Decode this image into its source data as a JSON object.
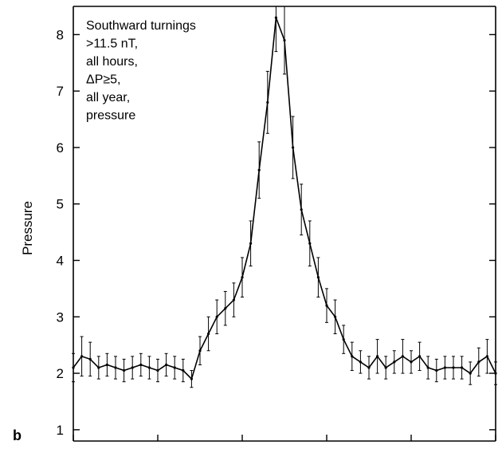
{
  "chart_data": {
    "type": "line",
    "title": "",
    "xlabel": "",
    "ylabel": "Pressure",
    "ylim": [
      0.8,
      8.5
    ],
    "xlim": [
      0,
      1
    ],
    "y_ticks": [
      1,
      2,
      3,
      4,
      5,
      6,
      7,
      8
    ],
    "x_tick_positions": [
      0,
      0.2,
      0.4,
      0.6,
      0.8,
      1.0
    ],
    "x_tick_labels_visible": false,
    "grid": false,
    "legend": "none",
    "panel_label": "b",
    "annotation": [
      "Southward turnings",
      ">11.5 nT,",
      "all hours,",
      "ΔP≥5,",
      "all year,",
      "pressure"
    ],
    "series": [
      {
        "error_bars": true,
        "x": [
          0.0,
          0.02,
          0.04,
          0.06,
          0.08,
          0.1,
          0.12,
          0.14,
          0.16,
          0.18,
          0.2,
          0.22,
          0.24,
          0.26,
          0.28,
          0.3,
          0.32,
          0.34,
          0.36,
          0.38,
          0.4,
          0.42,
          0.44,
          0.46,
          0.48,
          0.5,
          0.52,
          0.54,
          0.56,
          0.58,
          0.6,
          0.62,
          0.64,
          0.66,
          0.68,
          0.7,
          0.72,
          0.74,
          0.76,
          0.78,
          0.8,
          0.82,
          0.84,
          0.86,
          0.88,
          0.9,
          0.92,
          0.94,
          0.96,
          0.98,
          1.0
        ],
        "y": [
          2.1,
          2.3,
          2.25,
          2.1,
          2.15,
          2.1,
          2.05,
          2.1,
          2.15,
          2.1,
          2.05,
          2.15,
          2.1,
          2.05,
          1.9,
          2.4,
          2.7,
          3.0,
          3.15,
          3.3,
          3.7,
          4.3,
          5.6,
          6.8,
          8.3,
          7.9,
          6.0,
          4.9,
          4.3,
          3.7,
          3.2,
          3.0,
          2.6,
          2.3,
          2.2,
          2.1,
          2.3,
          2.1,
          2.2,
          2.3,
          2.2,
          2.3,
          2.1,
          2.05,
          2.1,
          2.1,
          2.1,
          2.0,
          2.2,
          2.3,
          2.0
        ],
        "err": [
          0.25,
          0.35,
          0.3,
          0.2,
          0.2,
          0.2,
          0.2,
          0.2,
          0.2,
          0.2,
          0.2,
          0.2,
          0.2,
          0.2,
          0.15,
          0.25,
          0.3,
          0.3,
          0.3,
          0.3,
          0.35,
          0.4,
          0.5,
          0.55,
          0.6,
          0.6,
          0.55,
          0.45,
          0.4,
          0.35,
          0.3,
          0.3,
          0.25,
          0.25,
          0.2,
          0.2,
          0.3,
          0.2,
          0.2,
          0.3,
          0.2,
          0.25,
          0.2,
          0.2,
          0.2,
          0.2,
          0.2,
          0.2,
          0.25,
          0.3,
          0.2
        ]
      }
    ]
  }
}
